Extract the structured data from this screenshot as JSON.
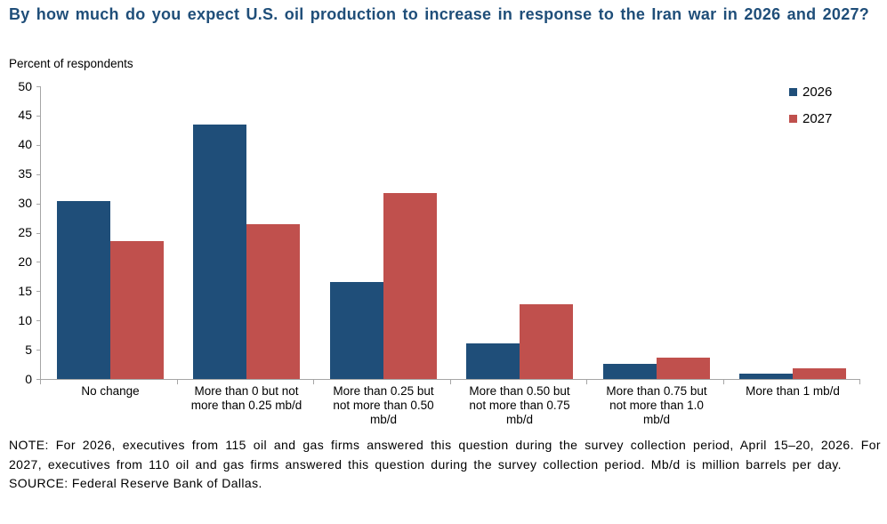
{
  "title": "By how much do you expect U.S. oil production to increase in response to the Iran war in 2026 and 2027?",
  "subtitle": "Percent of respondents",
  "note": "NOTE: For 2026, executives from 115 oil and gas firms answered this question during the survey collection period, April 15–20, 2026. For 2027, executives from 110 oil and gas firms answered this question during the survey collection period. Mb/d is million barrels per day.",
  "source": "SOURCE: Federal Reserve Bank of Dallas.",
  "colors": {
    "title": "#1F4E79",
    "axis": "#A6A6A6",
    "text": "#000000",
    "series_2026": "#1F4E79",
    "series_2027": "#C0504D"
  },
  "chart_data": {
    "type": "bar",
    "title": "By how much do you expect U.S. oil production to increase in response to the Iran war in 2026 and 2027?",
    "ylabel": "Percent of respondents",
    "xlabel": "",
    "categories": [
      "No change",
      "More than 0 but not more than 0.25 mb/d",
      "More than 0.25 but not more than 0.50 mb/d",
      "More than 0.50 but not more than 0.75 mb/d",
      "More than 0.75 but not more than 1.0 mb/d",
      "More than 1 mb/d"
    ],
    "series": [
      {
        "name": "2026",
        "color": "#1F4E79",
        "values": [
          30.4,
          43.5,
          16.5,
          6.1,
          2.6,
          0.9
        ]
      },
      {
        "name": "2027",
        "color": "#C0504D",
        "values": [
          23.6,
          26.4,
          31.8,
          12.7,
          3.6,
          1.8
        ]
      }
    ],
    "ylim": [
      0,
      50
    ],
    "ytick_step": 5,
    "grid": false,
    "legend_position": "top-right"
  }
}
